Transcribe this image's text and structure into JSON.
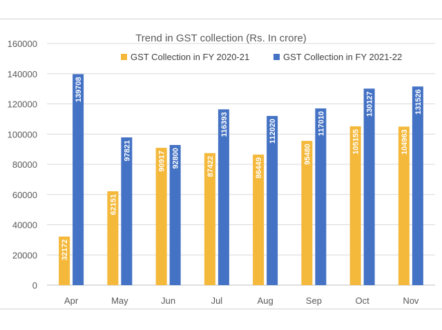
{
  "chart_data": {
    "type": "bar",
    "title": "Trend in GST collection (Rs. In crore)",
    "categories": [
      "Apr",
      "May",
      "Jun",
      "Jul",
      "Aug",
      "Sep",
      "Oct",
      "Nov"
    ],
    "series": [
      {
        "name": "GST Collection in FY 2020-21",
        "color": "#f4b83a",
        "values": [
          32172,
          62151,
          90917,
          87422,
          86449,
          95480,
          105155,
          104963
        ]
      },
      {
        "name": "GST Collection in FY 2021-22",
        "color": "#4472c4",
        "values": [
          139708,
          97821,
          92800,
          116393,
          112020,
          117010,
          130127,
          131526
        ]
      }
    ],
    "ylim": [
      0,
      160000
    ],
    "yticks": [
      "0",
      "20000",
      "40000",
      "60000",
      "80000",
      "100000",
      "120000",
      "140000",
      "160000"
    ],
    "grid": true,
    "legend_position": "top"
  }
}
